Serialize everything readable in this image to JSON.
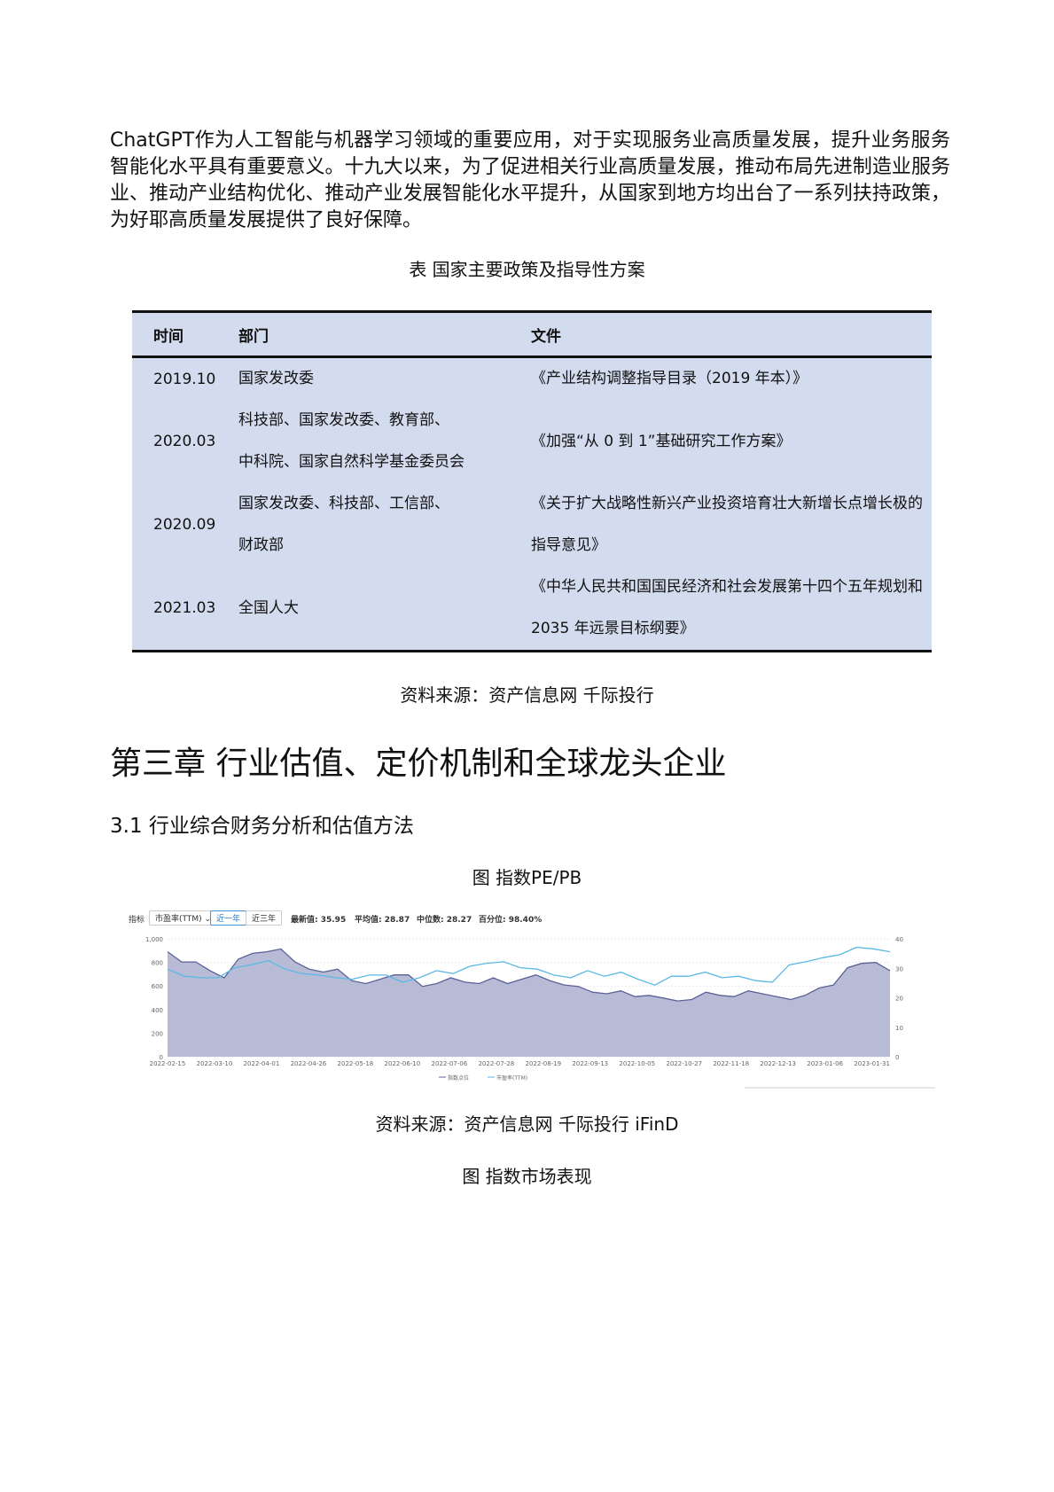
{
  "intro_paragraph": "ChatGPT作为人工智能与机器学习领域的重要应用，对于实现服务业高质量发展，提升业务服务智能化水平具有重要意义。十九大以来，为了促进相关行业高质量发展，推动布局先进制造业服务业、推动产业结构优化、推动产业发展智能化水平提升，从国家到地方均出台了一系列扶持政策，为好耶高质量发展提供了良好保障。",
  "table": {
    "caption": "表 国家主要政策及指导性方案",
    "headers": [
      "时间",
      "部门",
      "文件"
    ],
    "rows": [
      {
        "time": "2019.10",
        "dept": [
          "国家发改委"
        ],
        "doc": [
          "《产业结构调整指导目录（2019 年本）》"
        ]
      },
      {
        "time": "2020.03",
        "dept": [
          "科技部、国家发改委、教育部、",
          "中科院、国家自然科学基金委员会"
        ],
        "doc": [
          "《加强“从 0 到 1”基础研究工作方案》"
        ]
      },
      {
        "time": "2020.09",
        "dept": [
          "国家发改委、科技部、工信部、",
          "财政部"
        ],
        "doc": [
          "《关于扩大战略性新兴产业投资培育壮大新增长点增长极的",
          "指导意见》"
        ]
      },
      {
        "time": "2021.03",
        "dept": [
          "全国人大"
        ],
        "doc": [
          "《中华人民共和国国民经济和社会发展第十四个五年规划和",
          "2035 年远景目标纲要》"
        ]
      }
    ],
    "source": "资料来源：资产信息网 千际投行"
  },
  "chapter_title": "第三章 行业估值、定价机制和全球龙头企业",
  "section_title": "3.1 行业综合财务分析和估值方法",
  "figure1": {
    "caption": "图 指数PE/PB",
    "toolbar": {
      "indicator_label": "指标",
      "indicator_select": "市盈率(TTM)",
      "range_buttons": [
        "近一年",
        "近三年"
      ],
      "active_range": "近一年",
      "latest": "最新值: 35.95",
      "mean": "平均值: 28.87",
      "median": "中位数: 28.27",
      "percentile": "百分位: 98.40%"
    },
    "source": "资料来源：资产信息网 千际投行 iFinD"
  },
  "figure2_caption": "图 指数市场表现",
  "chart_data": {
    "type": "area",
    "x_ticks": [
      "2022-02-15",
      "2022-03-10",
      "2022-04-01",
      "2022-04-26",
      "2022-05-18",
      "2022-06-10",
      "2022-07-06",
      "2022-07-28",
      "2022-08-19",
      "2022-09-13",
      "2022-10-05",
      "2022-10-27",
      "2022-11-18",
      "2022-12-13",
      "2023-01-06",
      "2023-01-31"
    ],
    "y_left": {
      "range": [
        0,
        1000
      ],
      "ticks": [
        "0",
        "200",
        "400",
        "600",
        "800",
        "1,000"
      ]
    },
    "y_right": {
      "range": [
        0,
        40
      ],
      "ticks": [
        "0",
        "10",
        "20",
        "30",
        "40"
      ]
    },
    "grid": true,
    "legend_position": "bottom",
    "series": [
      {
        "name": "指数点位",
        "axis": "left",
        "type": "area",
        "color": "#7b83b4",
        "values": [
          890,
          804,
          804,
          730,
          669,
          828,
          877,
          890,
          914,
          804,
          743,
          718,
          743,
          645,
          620,
          657,
          694,
          694,
          596,
          620,
          669,
          632,
          620,
          669,
          620,
          657,
          694,
          645,
          608,
          596,
          547,
          534,
          559,
          510,
          520,
          498,
          473,
          485,
          547,
          520,
          510,
          559,
          534,
          510,
          485,
          520,
          583,
          608,
          755,
          792,
          799,
          730
        ]
      },
      {
        "name": "市盈率(TTM)",
        "axis": "right",
        "type": "line",
        "color": "#5bb8e4",
        "values": [
          29.7,
          27.3,
          26.8,
          26.8,
          30.2,
          31.2,
          32.6,
          29.7,
          28.2,
          27.7,
          26.8,
          26.3,
          27.7,
          27.7,
          25.3,
          26.8,
          29.2,
          28.2,
          30.7,
          31.7,
          32.2,
          30.2,
          29.7,
          27.7,
          26.8,
          29.2,
          27.3,
          28.7,
          26.3,
          24.3,
          27.3,
          27.3,
          28.7,
          26.8,
          27.3,
          25.8,
          25.3,
          31.2,
          32.2,
          33.6,
          34.6,
          37.1,
          36.6,
          35.6
        ]
      }
    ]
  }
}
